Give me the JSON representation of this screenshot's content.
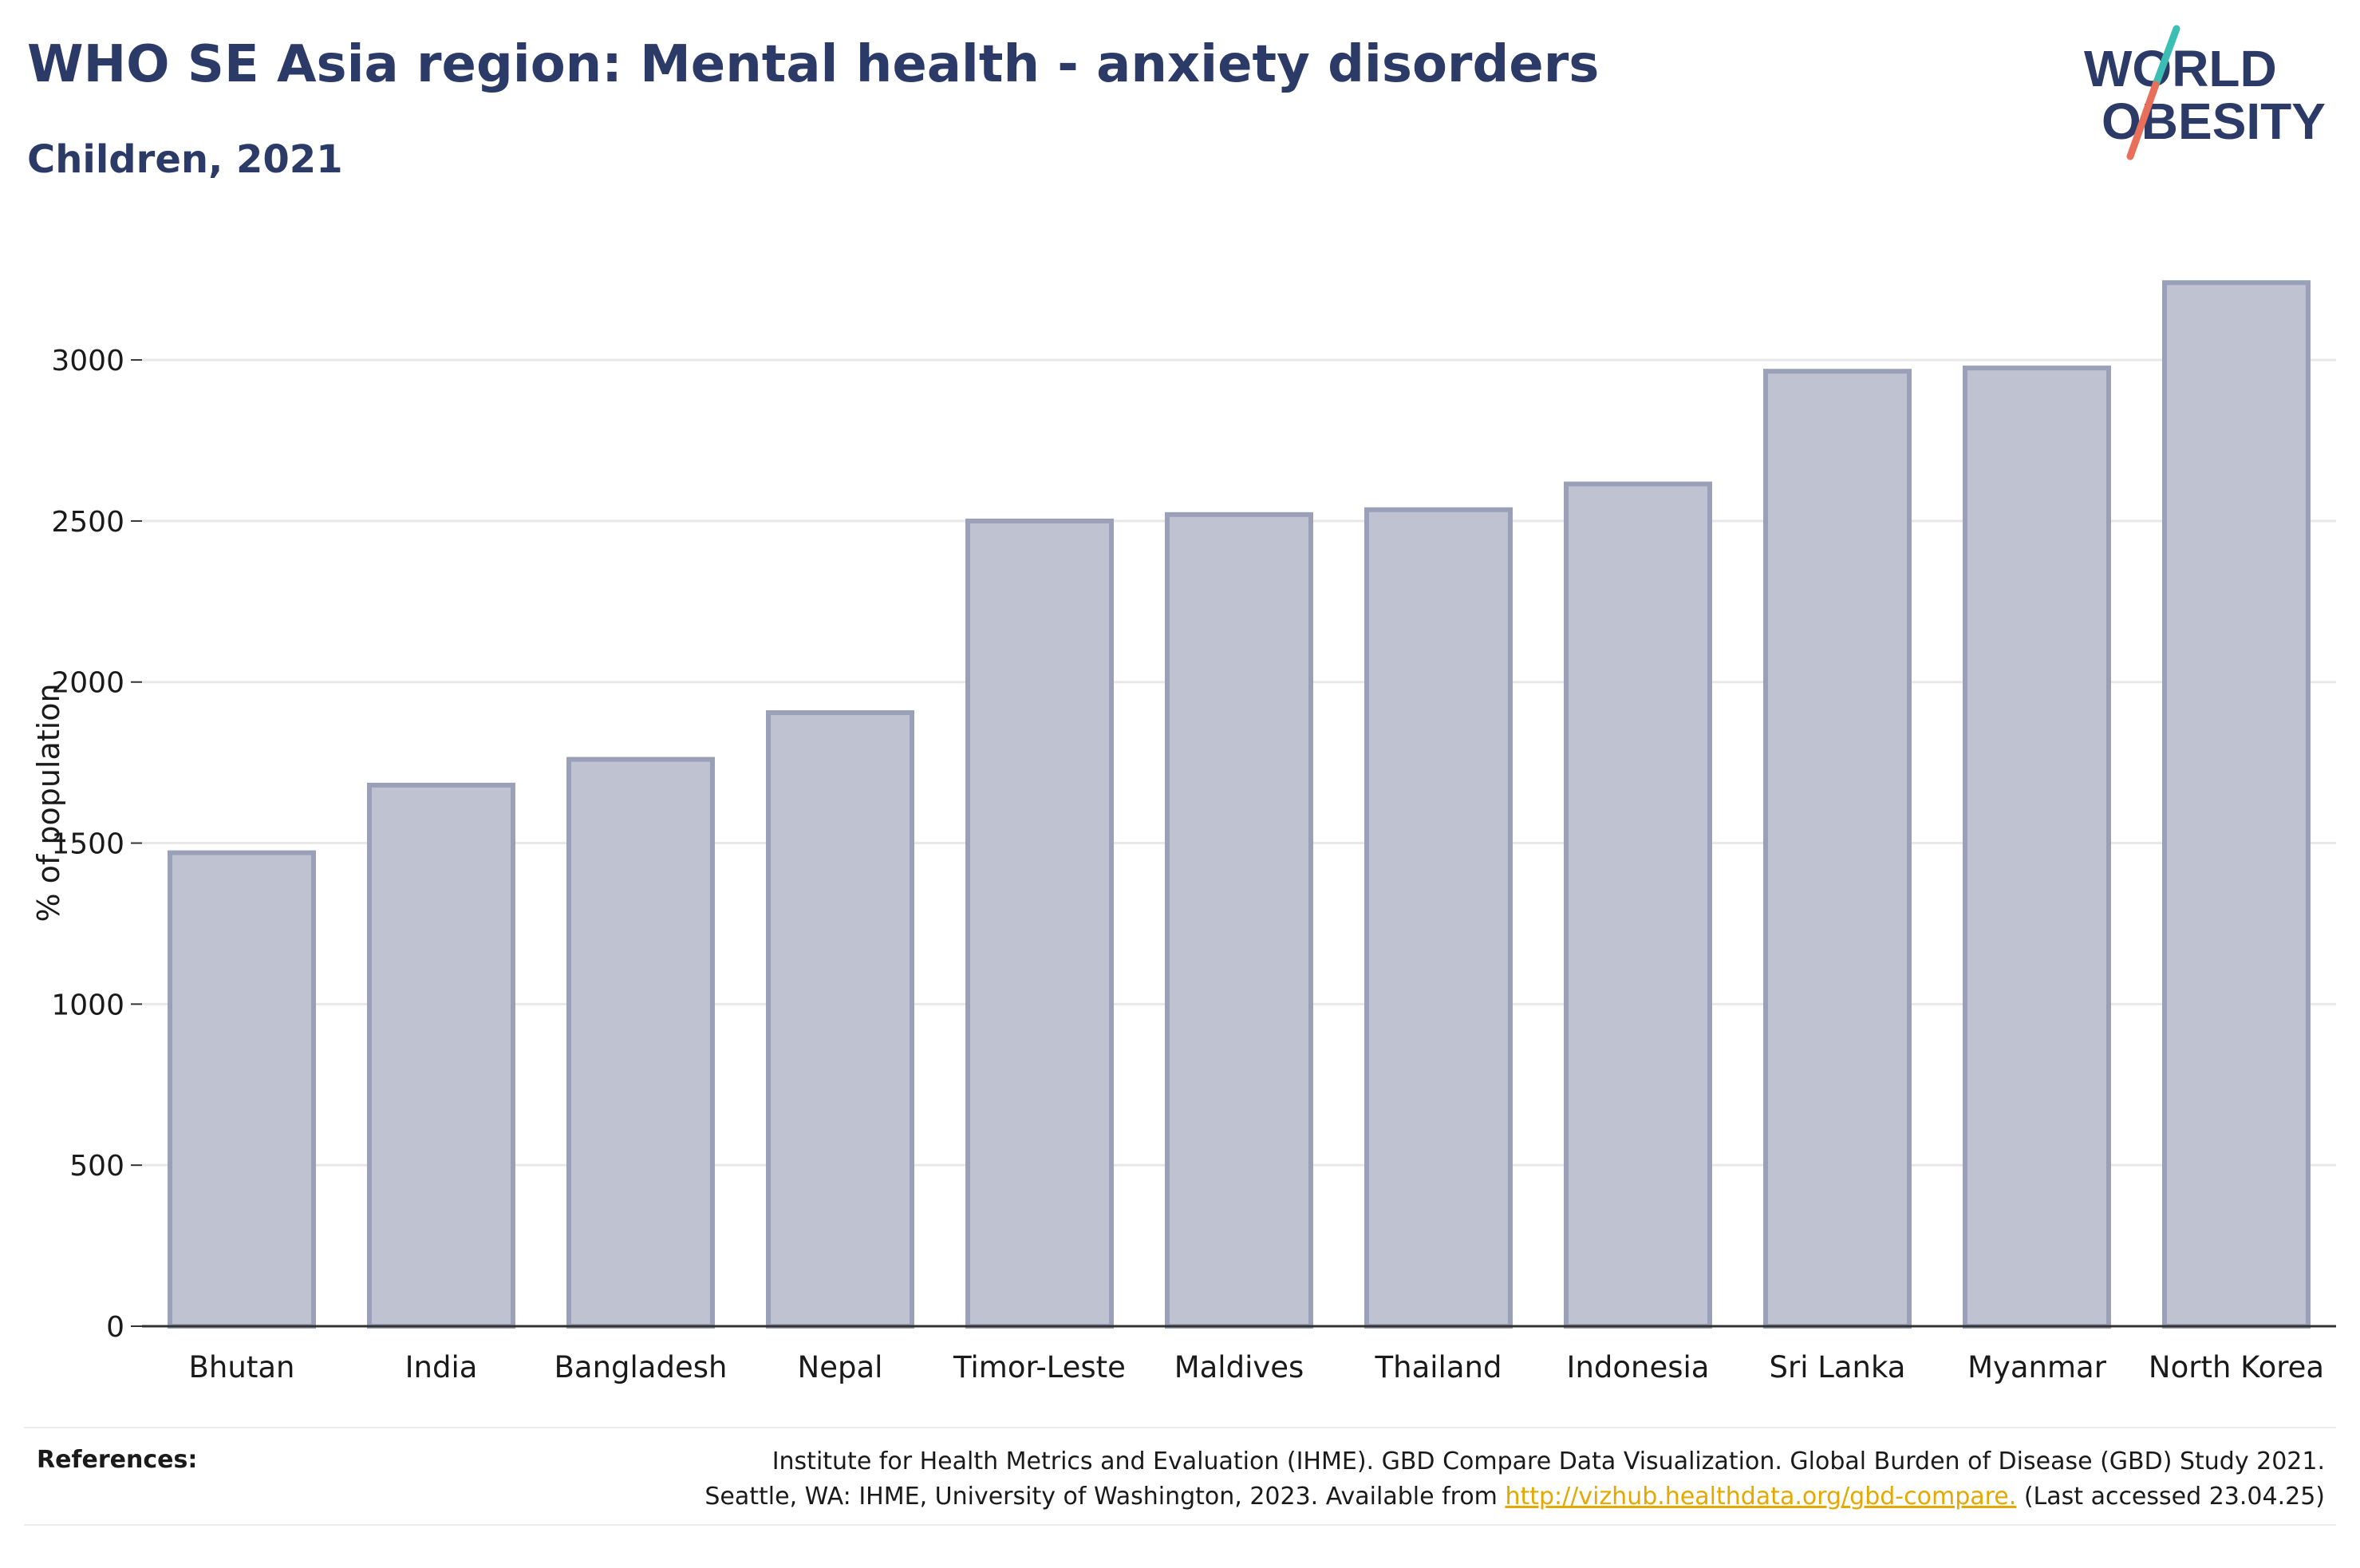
{
  "header": {
    "title": "WHO SE Asia region: Mental health - anxiety disorders",
    "subtitle": "Children, 2021"
  },
  "logo": {
    "line1": "WORLD",
    "line2": "OBESITY",
    "accent_teal": "#3bbfb5",
    "accent_coral": "#e8705a",
    "text_color": "#2b3a67"
  },
  "colors": {
    "bar_fill": "#bfc2d0",
    "bar_stroke": "#9aa0b8",
    "grid": "#e8e8e8",
    "axis": "#333333",
    "title": "#2b3a67"
  },
  "chart_data": {
    "type": "bar",
    "title": "WHO SE Asia region: Mental health - anxiety disorders",
    "subtitle": "Children, 2021",
    "xlabel": "",
    "ylabel": "% of population",
    "categories": [
      "Bhutan",
      "India",
      "Bangladesh",
      "Nepal",
      "Timor-Leste",
      "Maldives",
      "Thailand",
      "Indonesia",
      "Sri Lanka",
      "Myanmar",
      "North Korea"
    ],
    "values": [
      1470,
      1680,
      1760,
      1905,
      2500,
      2520,
      2535,
      2615,
      2965,
      2975,
      3240
    ],
    "ylim": [
      0,
      3300
    ],
    "yticks": [
      0,
      500,
      1000,
      1500,
      2000,
      2500,
      3000
    ],
    "grid": true,
    "legend": "none"
  },
  "footer": {
    "references_label": "References:",
    "ref_line1": "Institute for Health Metrics and Evaluation (IHME). GBD Compare Data Visualization. Global Burden of Disease (GBD) Study 2021.",
    "ref_line2_prefix": "Seattle, WA: IHME, University of Washington, 2023. Available from ",
    "ref_link": "http://vizhub.healthdata.org/gbd-compare.",
    "ref_line2_suffix": " (Last accessed 23.04.25)"
  }
}
